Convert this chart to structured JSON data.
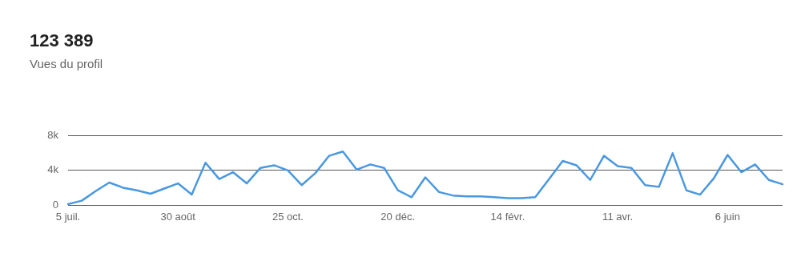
{
  "chart_data": {
    "type": "line",
    "title": "123 389",
    "subtitle": "Vues du profil",
    "categories": [
      "5 juil.",
      null,
      null,
      null,
      null,
      null,
      null,
      null,
      "30 août",
      null,
      null,
      null,
      null,
      null,
      null,
      null,
      "25 oct.",
      null,
      null,
      null,
      null,
      null,
      null,
      null,
      "20 déc.",
      null,
      null,
      null,
      null,
      null,
      null,
      null,
      "14 févr.",
      null,
      null,
      null,
      null,
      null,
      null,
      null,
      "11 avr.",
      null,
      null,
      null,
      null,
      null,
      null,
      null,
      "6 juin",
      null,
      null,
      null,
      null
    ],
    "series": [
      {
        "color": "#4a98e0",
        "values": [
          100,
          500,
          1600,
          2600,
          2000,
          1700,
          1300,
          1900,
          2500,
          1200,
          4900,
          3000,
          3800,
          2500,
          4300,
          4600,
          4000,
          2300,
          3700,
          5700,
          6200,
          4100,
          4700,
          4300,
          1700,
          900,
          3200,
          1500,
          1100,
          1000,
          1000,
          900,
          800,
          800,
          900,
          3000,
          5100,
          4600,
          2900,
          5700,
          4500,
          4300,
          2300,
          2100,
          6000,
          1700,
          1200,
          3100,
          5800,
          3800,
          4700,
          2900,
          2400
        ]
      }
    ],
    "ylim": [
      0,
      8000
    ],
    "yticks": [
      {
        "value": 0,
        "label": "0"
      },
      {
        "value": 4000,
        "label": "4k"
      },
      {
        "value": 8000,
        "label": "8k"
      }
    ],
    "grid": "y",
    "legend": false,
    "marker": "none",
    "line_style": "solid"
  }
}
